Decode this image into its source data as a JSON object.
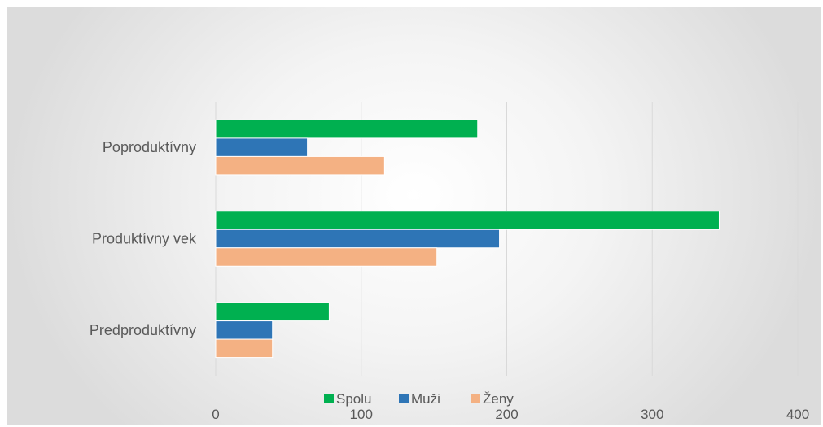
{
  "chart_data": {
    "type": "bar",
    "orientation": "horizontal",
    "categories": [
      "Predproduktívny",
      "Produktívny vek",
      "Poproduktívny"
    ],
    "series": [
      {
        "name": "Spolu",
        "values": [
          78,
          346,
          180
        ],
        "color": "#00b050"
      },
      {
        "name": "Muži",
        "values": [
          39,
          195,
          63
        ],
        "color": "#2e75b6"
      },
      {
        "name": "Ženy",
        "values": [
          39,
          152,
          116
        ],
        "color": "#f4b183"
      }
    ],
    "xlim": [
      0,
      400
    ],
    "xticks": [
      0,
      100,
      200,
      300,
      400
    ],
    "grid": true,
    "legend_position": "bottom"
  }
}
